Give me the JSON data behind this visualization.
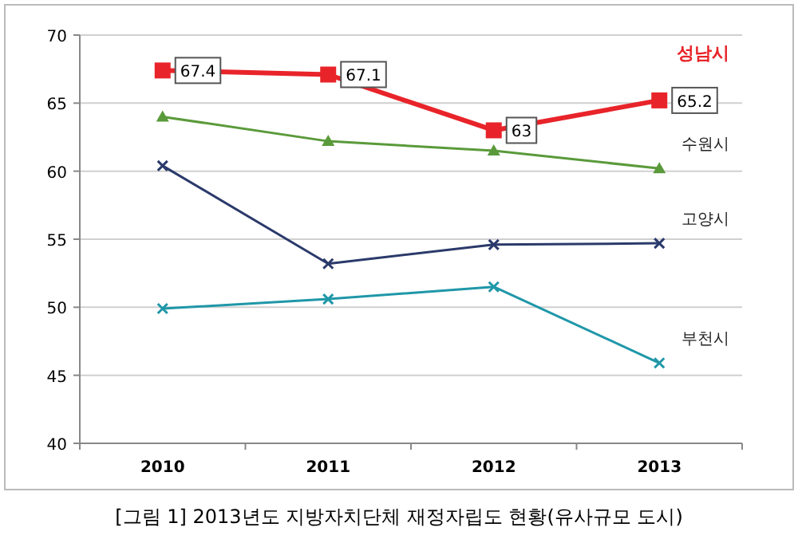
{
  "chart_data": {
    "type": "line",
    "categories": [
      "2010",
      "2011",
      "2012",
      "2013"
    ],
    "ylim": [
      40,
      70
    ],
    "yticks": [
      40,
      45,
      50,
      55,
      60,
      65,
      70
    ],
    "grid": "y",
    "series": [
      {
        "name": "성남시",
        "color": "#e8242a",
        "marker": "square",
        "values": [
          67.4,
          67.1,
          63,
          65.2
        ],
        "value_labels": [
          "67.4",
          "67.1",
          "63",
          "65.2"
        ]
      },
      {
        "name": "수원시",
        "color": "#5a9a3a",
        "marker": "triangle",
        "values": [
          64,
          62.2,
          61.5,
          60.2
        ]
      },
      {
        "name": "고양시",
        "color": "#2b3a6b",
        "marker": "cross",
        "values": [
          60.4,
          53.2,
          54.6,
          54.7
        ]
      },
      {
        "name": "부천시",
        "color": "#1f97a8",
        "marker": "cross",
        "values": [
          49.9,
          50.6,
          51.5,
          45.9
        ]
      }
    ],
    "annotations": [
      "[그림 1] 2013년도 지방자치단체 재정자립도 현황(유사규모 도시)"
    ]
  }
}
